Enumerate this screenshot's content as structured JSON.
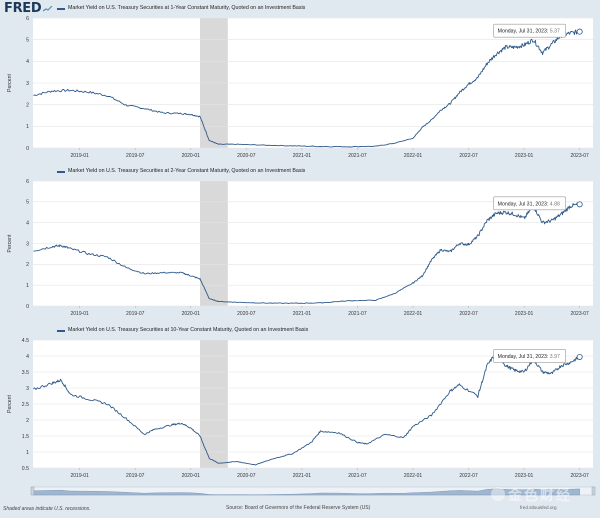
{
  "brand": {
    "logo_text": "FRED"
  },
  "footer": {
    "recession_note": "Shaded areas indicate U.S. recessions.",
    "source": "Source: Board of Governors of the Federal Reserve System (US)",
    "url": "fred.stlouisfed.org"
  },
  "watermark": {
    "text": "金色财经"
  },
  "colors": {
    "line": "#2f5a8a",
    "recession": "#d9d9d9",
    "plot_bg": "#ffffff",
    "grid": "#e3e3e3",
    "page_bg": "#e1e9f0"
  },
  "chart_data": [
    {
      "type": "line",
      "title": "Market Yield on U.S. Treasury Securities at 1-Year Constant Maturity, Quoted on an Investment Basis",
      "ylabel": "Percent",
      "ylim": [
        0,
        6
      ],
      "yticks": [
        "0",
        "1",
        "2",
        "3",
        "4",
        "5",
        "6"
      ],
      "xticks": [
        "2019-01",
        "2019-07",
        "2020-01",
        "2020-07",
        "2021-01",
        "2021-07",
        "2022-01",
        "2022-07",
        "2023-01",
        "2023-07"
      ],
      "recession": [
        "2020-02",
        "2020-04"
      ],
      "tooltip": {
        "label": "Monday, Jul 31, 2023:",
        "value": "5.37"
      },
      "series": [
        {
          "x": [
            "2018-08",
            "2018-10",
            "2018-12",
            "2019-02",
            "2019-04",
            "2019-06",
            "2019-08",
            "2019-10",
            "2019-12",
            "2020-01",
            "2020-02",
            "2020-03",
            "2020-04",
            "2020-06",
            "2020-09",
            "2020-12",
            "2021-03",
            "2021-06",
            "2021-09",
            "2021-11",
            "2022-01",
            "2022-02",
            "2022-03",
            "2022-04",
            "2022-05",
            "2022-06",
            "2022-07",
            "2022-08",
            "2022-09",
            "2022-10",
            "2022-11",
            "2022-12",
            "2023-01",
            "2023-02",
            "2023-03",
            "2023-04",
            "2023-05",
            "2023-06",
            "2023-07"
          ],
          "y": [
            2.43,
            2.63,
            2.66,
            2.58,
            2.42,
            1.98,
            1.82,
            1.62,
            1.59,
            1.55,
            1.45,
            0.35,
            0.17,
            0.17,
            0.13,
            0.1,
            0.07,
            0.06,
            0.08,
            0.22,
            0.45,
            0.95,
            1.3,
            1.75,
            2.05,
            2.55,
            2.95,
            3.25,
            3.9,
            4.35,
            4.65,
            4.65,
            4.75,
            5.0,
            4.4,
            4.8,
            5.2,
            5.3,
            5.37
          ]
        }
      ]
    },
    {
      "type": "line",
      "title": "Market Yield on U.S. Treasury Securities at 2-Year Constant Maturity, Quoted on an Investment Basis",
      "ylabel": "Percent",
      "ylim": [
        0,
        6
      ],
      "yticks": [
        "0",
        "1",
        "2",
        "3",
        "4",
        "5",
        "6"
      ],
      "xticks": [
        "2019-01",
        "2019-07",
        "2020-01",
        "2020-07",
        "2021-01",
        "2021-07",
        "2022-01",
        "2022-07",
        "2023-01",
        "2023-07"
      ],
      "recession": [
        "2020-02",
        "2020-04"
      ],
      "tooltip": {
        "label": "Monday, Jul 31, 2023:",
        "value": "4.88"
      },
      "series": [
        {
          "x": [
            "2018-08",
            "2018-10",
            "2018-11",
            "2018-12",
            "2019-02",
            "2019-04",
            "2019-06",
            "2019-08",
            "2019-10",
            "2019-12",
            "2020-01",
            "2020-02",
            "2020-03",
            "2020-04",
            "2020-06",
            "2020-09",
            "2020-12",
            "2021-03",
            "2021-06",
            "2021-09",
            "2021-11",
            "2022-01",
            "2022-02",
            "2022-03",
            "2022-04",
            "2022-05",
            "2022-06",
            "2022-07",
            "2022-08",
            "2022-09",
            "2022-10",
            "2022-11",
            "2022-12",
            "2023-01",
            "2023-02",
            "2023-03",
            "2023-04",
            "2023-05",
            "2023-06",
            "2023-07"
          ],
          "y": [
            2.65,
            2.85,
            2.9,
            2.75,
            2.5,
            2.35,
            1.85,
            1.55,
            1.6,
            1.6,
            1.45,
            1.3,
            0.35,
            0.22,
            0.18,
            0.14,
            0.13,
            0.15,
            0.25,
            0.28,
            0.6,
            1.1,
            1.45,
            2.2,
            2.7,
            2.6,
            3.0,
            2.95,
            3.35,
            4.1,
            4.45,
            4.5,
            4.4,
            4.2,
            4.8,
            4.0,
            4.1,
            4.4,
            4.8,
            4.88
          ]
        }
      ]
    },
    {
      "type": "line",
      "title": "Market Yield on U.S. Treasury Securities at 10-Year Constant Maturity, Quoted on an Investment Basis",
      "ylabel": "Percent",
      "ylim": [
        0.5,
        4.5
      ],
      "yticks": [
        "0.5",
        "1",
        "1.5",
        "2",
        "2.5",
        "3",
        "3.5",
        "4",
        "4.5"
      ],
      "xticks": [
        "2019-01",
        "2019-07",
        "2020-01",
        "2020-07",
        "2021-01",
        "2021-07",
        "2022-01",
        "2022-07",
        "2023-01",
        "2023-07"
      ],
      "recession": [
        "2020-02",
        "2020-04"
      ],
      "tooltip": {
        "label": "Monday, Jul 31, 2023:",
        "value": "3.97"
      },
      "series": [
        {
          "x": [
            "2018-08",
            "2018-10",
            "2018-11",
            "2018-12",
            "2019-02",
            "2019-04",
            "2019-06",
            "2019-08",
            "2019-09",
            "2019-11",
            "2019-12",
            "2020-01",
            "2020-02",
            "2020-03",
            "2020-04",
            "2020-06",
            "2020-08",
            "2020-10",
            "2020-12",
            "2021-02",
            "2021-03",
            "2021-05",
            "2021-07",
            "2021-08",
            "2021-10",
            "2021-12",
            "2022-01",
            "2022-03",
            "2022-05",
            "2022-06",
            "2022-08",
            "2022-09",
            "2022-10",
            "2022-11",
            "2022-12",
            "2023-01",
            "2023-02",
            "2023-03",
            "2023-04",
            "2023-05",
            "2023-06",
            "2023-07"
          ],
          "y": [
            2.95,
            3.15,
            3.25,
            2.8,
            2.65,
            2.5,
            2.05,
            1.55,
            1.7,
            1.85,
            1.9,
            1.75,
            1.5,
            0.8,
            0.65,
            0.7,
            0.6,
            0.8,
            0.95,
            1.3,
            1.65,
            1.6,
            1.3,
            1.25,
            1.55,
            1.45,
            1.8,
            2.15,
            2.9,
            3.1,
            2.75,
            3.7,
            4.1,
            3.7,
            3.55,
            3.5,
            3.9,
            3.5,
            3.45,
            3.7,
            3.8,
            3.97
          ]
        }
      ]
    }
  ]
}
